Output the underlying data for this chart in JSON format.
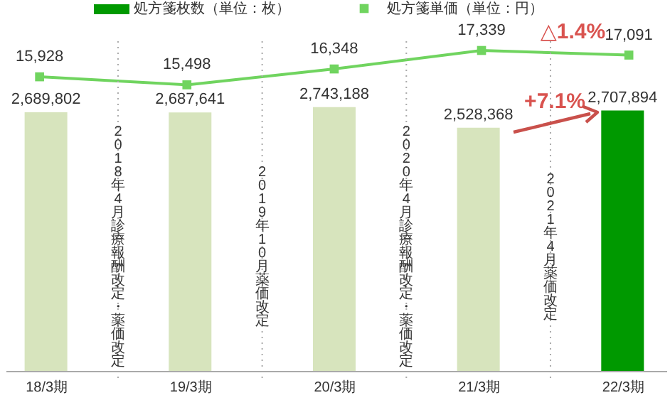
{
  "chart_data": [
    {
      "type": "line",
      "categories": [
        null,
        null,
        null,
        null,
        null
      ],
      "series": [
        {
          "name": "処方箋単価（単位：円）",
          "color": "#70d45f",
          "values": [
            15928,
            15498,
            16348,
            17339,
            17091
          ],
          "value_labels": [
            "15,928",
            "15,498",
            "16,348",
            "17,339",
            "17,091"
          ]
        }
      ],
      "tick_labels": false,
      "legend": "top",
      "marker": "square",
      "line_style": "solid",
      "annotations": [
        "△1.4%"
      ]
    },
    {
      "type": "bar",
      "categories": [
        "18/3期",
        "19/3期",
        "20/3期",
        "21/3期",
        "22/3期"
      ],
      "series": [
        {
          "name": "処方箋枚数（単位：枚）",
          "color": "#009900",
          "colors": [
            "#d7e4bd",
            "#d7e4bd",
            "#d7e4bd",
            "#d7e4bd",
            "#009900"
          ],
          "values": [
            2689802,
            2687641,
            2743188,
            2528368,
            2707894
          ],
          "value_labels": [
            "2,689,802",
            "2,687,641",
            "2,743,188",
            "2,528,368",
            "2,707,894"
          ]
        }
      ],
      "tick_labels": "x",
      "legend": "top",
      "annotations": [
        "2018年4月診療報酬改定・薬価改定",
        "2019年10月薬価改定",
        "2020年4月診療報酬改定・薬価改定",
        "2021年4月薬価改定",
        "+7.1%"
      ]
    }
  ]
}
